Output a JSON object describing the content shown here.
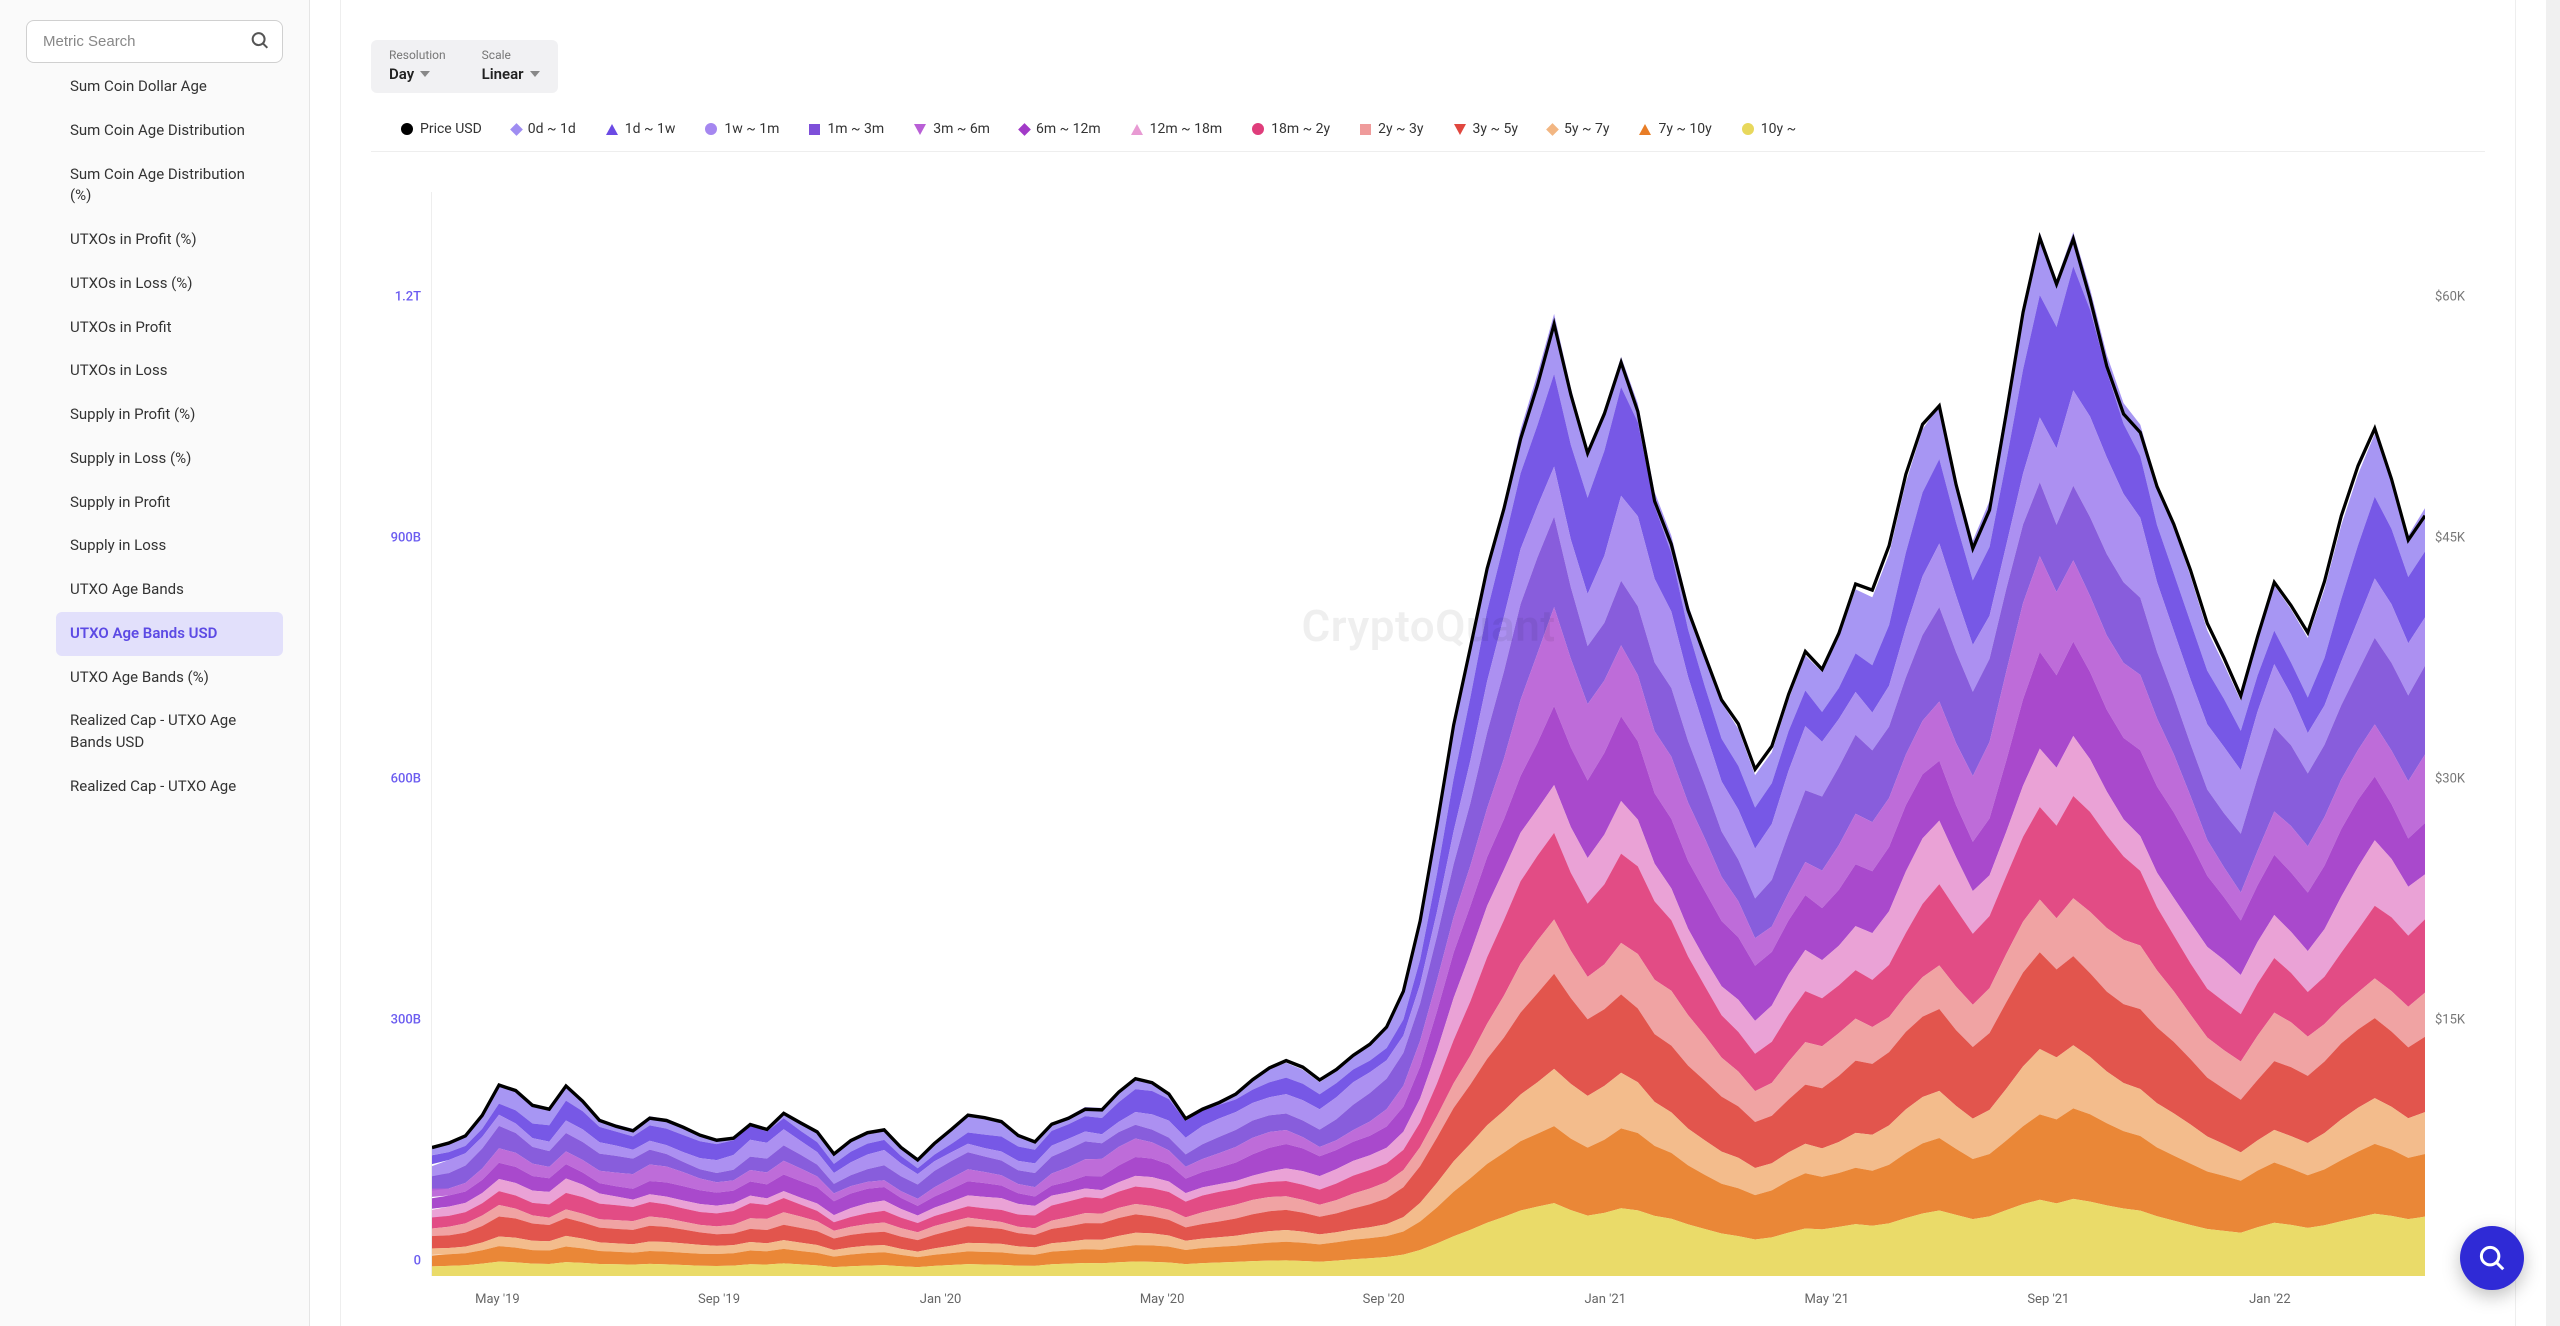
{
  "search": {
    "placeholder": "Metric Search"
  },
  "sidebar": {
    "items": [
      {
        "label": "Sum Coin Dollar Age",
        "active": false,
        "cut": true
      },
      {
        "label": "Sum Coin Age Distribution",
        "active": false
      },
      {
        "label": "Sum Coin Age Distribution (%)",
        "active": false
      },
      {
        "label": "UTXOs in Profit (%)",
        "active": false
      },
      {
        "label": "UTXOs in Loss (%)",
        "active": false
      },
      {
        "label": "UTXOs in Profit",
        "active": false
      },
      {
        "label": "UTXOs in Loss",
        "active": false
      },
      {
        "label": "Supply in Profit (%)",
        "active": false
      },
      {
        "label": "Supply in Loss (%)",
        "active": false
      },
      {
        "label": "Supply in Profit",
        "active": false
      },
      {
        "label": "Supply in Loss",
        "active": false
      },
      {
        "label": "UTXO Age Bands",
        "active": false
      },
      {
        "label": "UTXO Age Bands USD",
        "active": true
      },
      {
        "label": "UTXO Age Bands (%)",
        "active": false
      },
      {
        "label": "Realized Cap - UTXO Age Bands USD",
        "active": false
      },
      {
        "label": "Realized Cap - UTXO Age",
        "active": false,
        "cut": true
      }
    ]
  },
  "controls": {
    "resolution": {
      "label": "Resolution",
      "value": "Day"
    },
    "scale": {
      "label": "Scale",
      "value": "Linear"
    }
  },
  "legend": [
    {
      "marker": "circle",
      "color": "#000000",
      "label": "Price USD"
    },
    {
      "marker": "diamond",
      "color": "#9f8df2",
      "label": "0d ~ 1d"
    },
    {
      "marker": "triangle-up",
      "color": "#6b4ae4",
      "label": "1d ~ 1w"
    },
    {
      "marker": "circle",
      "color": "#a587f0",
      "label": "1w ~ 1m"
    },
    {
      "marker": "square",
      "color": "#7e4fd9",
      "label": "1m ~ 3m"
    },
    {
      "marker": "triangle-down",
      "color": "#b95fd6",
      "label": "3m ~ 6m"
    },
    {
      "marker": "diamond",
      "color": "#a23ac8",
      "label": "6m ~ 12m"
    },
    {
      "marker": "triangle-up",
      "color": "#e89ad3",
      "label": "12m ~ 18m"
    },
    {
      "marker": "circle",
      "color": "#df3d7b",
      "label": "18m ~ 2y"
    },
    {
      "marker": "square",
      "color": "#ef9b9b",
      "label": "2y ~ 3y"
    },
    {
      "marker": "triangle-down",
      "color": "#e0473e",
      "label": "3y ~ 5y"
    },
    {
      "marker": "diamond",
      "color": "#f2b682",
      "label": "5y ~ 7y"
    },
    {
      "marker": "triangle-up",
      "color": "#e87d26",
      "label": "7y ~ 10y"
    },
    {
      "marker": "circle",
      "color": "#e8d85c",
      "label": "10y ~"
    }
  ],
  "watermark": "CryptoQuant",
  "chart": {
    "type": "stacked-area-dual-axis",
    "background_color": "#ffffff",
    "y_left": {
      "ticks": [
        {
          "value": 0,
          "label": "0"
        },
        {
          "value": 300,
          "label": "300B"
        },
        {
          "value": 600,
          "label": "600B"
        },
        {
          "value": 900,
          "label": "900B"
        },
        {
          "value": 1200,
          "label": "1.2T"
        }
      ],
      "min": 0,
      "max": 1350,
      "color": "#6b5cf0"
    },
    "y_right": {
      "ticks": [
        {
          "value": 15000,
          "label": "$15K"
        },
        {
          "value": 30000,
          "label": "$30K"
        },
        {
          "value": 45000,
          "label": "$45K"
        },
        {
          "value": 60000,
          "label": "$60K"
        }
      ],
      "min": 0,
      "max": 67500,
      "color": "#777"
    },
    "x": {
      "ticks": [
        "May '19",
        "Sep '19",
        "Jan '20",
        "May '20",
        "Sep '20",
        "Jan '21",
        "May '21",
        "Sep '21",
        "Jan '22"
      ],
      "n": 120
    },
    "series_colors_bottom_up": [
      "#e8d85c",
      "#e87d26",
      "#f2b682",
      "#e0473e",
      "#ef9b9b",
      "#df3d7b",
      "#e89ad3",
      "#a23ac8",
      "#b95fd6",
      "#7e4fd9",
      "#a587f0",
      "#6b4ae4",
      "#9f8df2"
    ],
    "price_color": "#000000",
    "total_envelope": [
      160,
      165,
      175,
      200,
      235,
      225,
      205,
      200,
      230,
      215,
      195,
      190,
      185,
      200,
      195,
      185,
      175,
      170,
      175,
      195,
      190,
      210,
      195,
      180,
      150,
      165,
      175,
      180,
      160,
      145,
      165,
      180,
      195,
      190,
      185,
      170,
      165,
      190,
      200,
      212,
      210,
      230,
      245,
      240,
      228,
      200,
      215,
      225,
      235,
      250,
      260,
      265,
      255,
      240,
      255,
      275,
      290,
      310,
      350,
      430,
      540,
      660,
      760,
      870,
      960,
      1060,
      1130,
      1200,
      1100,
      1020,
      1070,
      1145,
      1100,
      1000,
      950,
      860,
      790,
      720,
      680,
      620,
      650,
      720,
      780,
      760,
      800,
      850,
      830,
      875,
      960,
      1030,
      1070,
      990,
      920,
      970,
      1085,
      1200,
      1285,
      1230,
      1300,
      1245,
      1175,
      1120,
      1090,
      1005,
      940,
      870,
      800,
      760,
      720,
      800,
      870,
      835,
      790,
      840,
      910,
      970,
      1025,
      980,
      920,
      960
    ],
    "band_shares": [
      0.075,
      0.085,
      0.055,
      0.095,
      0.06,
      0.085,
      0.06,
      0.09,
      0.075,
      0.095,
      0.08,
      0.085,
      0.06
    ],
    "noise_amp": 0.03,
    "price_scale_per_total": 50
  },
  "fab": {
    "color": "#2f2ad6"
  }
}
